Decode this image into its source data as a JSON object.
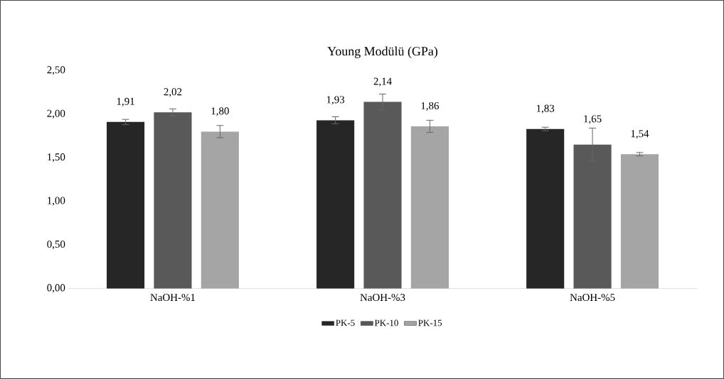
{
  "chart_data": {
    "type": "bar",
    "title": "Young Modülü (GPa)",
    "categories": [
      "NaOH-%1",
      "NaOH-%3",
      "NaOH-%5"
    ],
    "series": [
      {
        "name": "PK-5",
        "color": "#262626",
        "values": [
          1.91,
          1.93,
          1.83
        ],
        "errors": [
          0.03,
          0.04,
          0.02
        ],
        "value_labels": [
          "1,91",
          "1,93",
          "1,83"
        ]
      },
      {
        "name": "PK-10",
        "color": "#595959",
        "values": [
          2.02,
          2.14,
          1.65
        ],
        "errors": [
          0.04,
          0.09,
          0.19
        ],
        "value_labels": [
          "2,02",
          "2,14",
          "1,65"
        ]
      },
      {
        "name": "PK-15",
        "color": "#a5a5a5",
        "values": [
          1.8,
          1.86,
          1.54
        ],
        "errors": [
          0.07,
          0.07,
          0.02
        ],
        "value_labels": [
          "1,80",
          "1,86",
          "1,54"
        ]
      }
    ],
    "ylim": [
      0,
      2.5
    ],
    "yticks": [
      {
        "value": 0,
        "label": "0,00"
      },
      {
        "value": 0.5,
        "label": "0,50"
      },
      {
        "value": 1,
        "label": "1,00"
      },
      {
        "value": 1.5,
        "label": "1,50"
      },
      {
        "value": 2,
        "label": "2,00"
      },
      {
        "value": 2.5,
        "label": "2,50"
      }
    ],
    "grid": false,
    "legend": "bottom"
  }
}
